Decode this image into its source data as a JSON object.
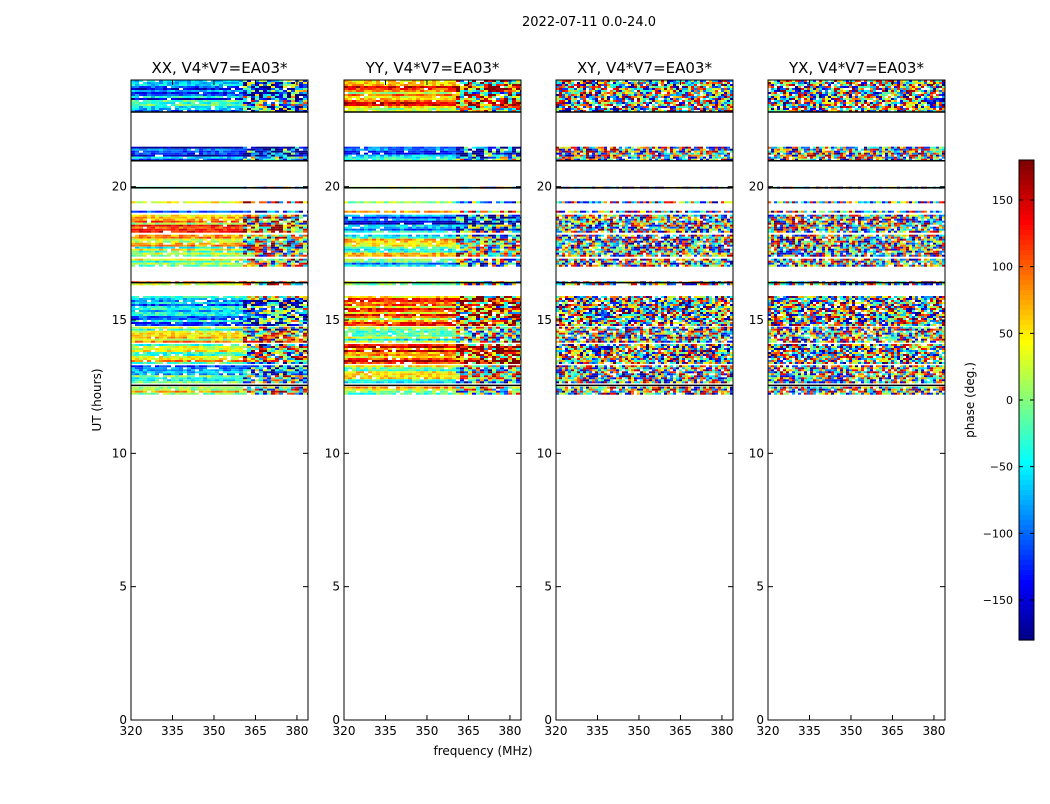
{
  "chart_data": {
    "type": "heatmap",
    "suptitle": "2022-07-11 0.0-24.0",
    "xlabel": "frequency (MHz)",
    "ylabel": "UT (hours)",
    "xlim": [
      320,
      384
    ],
    "ylim": [
      0,
      24
    ],
    "xticks": [
      "320",
      "335",
      "350",
      "365",
      "380"
    ],
    "xtick_values": [
      320,
      335,
      350,
      365,
      380
    ],
    "yticks": [
      "0",
      "5",
      "10",
      "15",
      "20"
    ],
    "ytick_values": [
      0,
      5,
      10,
      15,
      20
    ],
    "colorbar": {
      "label": "phase (deg.)",
      "range": [
        -180,
        180
      ],
      "ticks": [
        "150",
        "100",
        "50",
        "0",
        "−50",
        "−100",
        "−150"
      ],
      "tick_values": [
        150,
        100,
        50,
        0,
        -50,
        -100,
        -150
      ],
      "colormap": "jet"
    },
    "panels": [
      {
        "title": "XX, V4*V7=EA03*",
        "character": "coherent"
      },
      {
        "title": "YY, V4*V7=EA03*",
        "character": "coherent"
      },
      {
        "title": "XY, V4*V7=EA03*",
        "character": "noise"
      },
      {
        "title": "YX, V4*V7=EA03*",
        "character": "noise"
      }
    ],
    "data_bands_ut": [
      [
        12.2,
        12.5
      ],
      [
        12.6,
        13.3
      ],
      [
        13.35,
        14.1
      ],
      [
        14.15,
        14.75
      ],
      [
        14.8,
        15.9
      ],
      [
        16.3,
        16.45
      ],
      [
        17.0,
        17.3
      ],
      [
        17.4,
        18.2
      ],
      [
        18.25,
        18.95
      ],
      [
        19.0,
        19.1
      ],
      [
        19.35,
        19.45
      ],
      [
        19.95,
        20.0
      ],
      [
        20.95,
        21.5
      ],
      [
        22.8,
        24.0
      ]
    ],
    "flagged_lines_ut": [
      12.55,
      16.4,
      19.96,
      20.97,
      22.8
    ]
  }
}
